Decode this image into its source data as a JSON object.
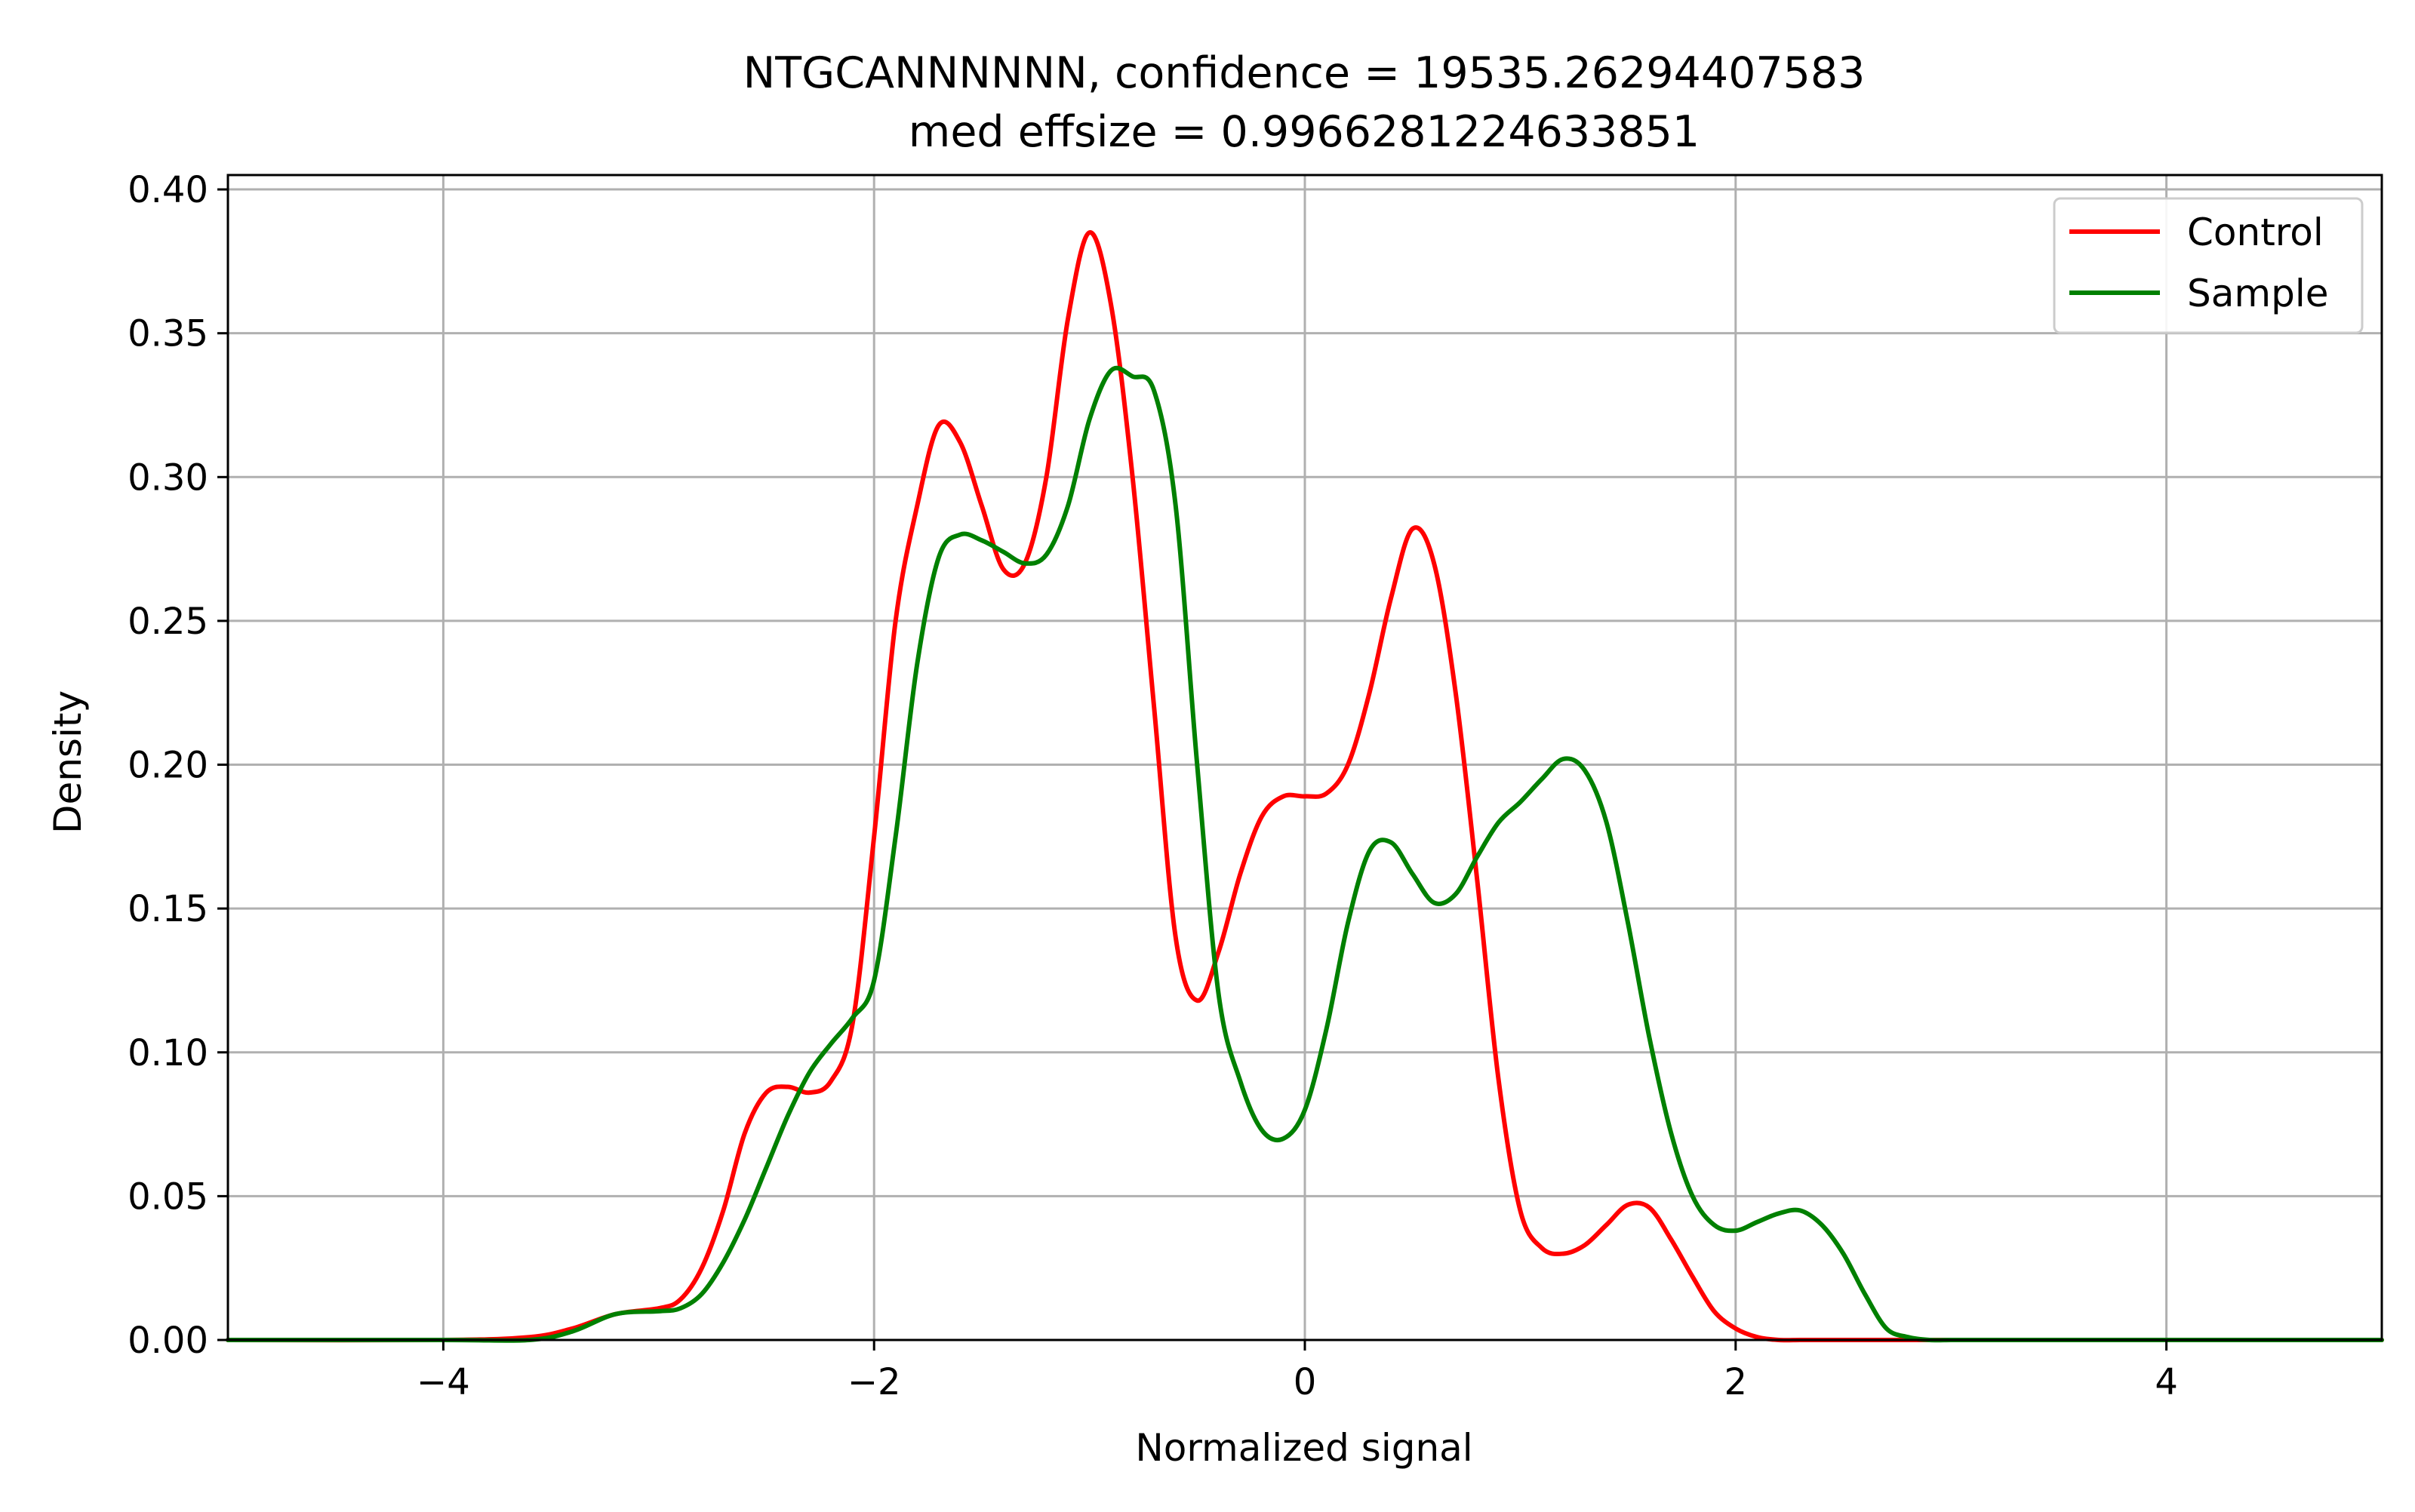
{
  "chart_data": {
    "type": "line",
    "title": "NTGCANNNNNN, confidence = 19535.26294407583",
    "subtitle": "med effsize = 0.9966281224633851",
    "xlabel": "Normalized signal",
    "ylabel": "Density",
    "xlim": [
      -5,
      5
    ],
    "ylim": [
      0,
      0.405
    ],
    "x_ticks": [
      -4,
      -2,
      0,
      2,
      4
    ],
    "x_tick_labels": [
      "−4",
      "−2",
      "0",
      "2",
      "4"
    ],
    "y_ticks": [
      0,
      0.05,
      0.1,
      0.15,
      0.2,
      0.25,
      0.3,
      0.35,
      0.4
    ],
    "y_tick_labels": [
      "0.00",
      "0.05",
      "0.10",
      "0.15",
      "0.20",
      "0.25",
      "0.30",
      "0.35",
      "0.40"
    ],
    "grid": true,
    "legend_position": "top-right",
    "series": [
      {
        "name": "Control",
        "color": "#ff0000",
        "x": [
          -5,
          -4,
          -3.6,
          -3.4,
          -3.2,
          -3.0,
          -2.9,
          -2.8,
          -2.7,
          -2.6,
          -2.5,
          -2.4,
          -2.3,
          -2.2,
          -2.1,
          -2.0,
          -1.9,
          -1.8,
          -1.7,
          -1.6,
          -1.5,
          -1.4,
          -1.3,
          -1.2,
          -1.1,
          -1.0,
          -0.9,
          -0.8,
          -0.7,
          -0.6,
          -0.5,
          -0.4,
          -0.3,
          -0.2,
          -0.1,
          0.0,
          0.1,
          0.2,
          0.3,
          0.4,
          0.5,
          0.6,
          0.7,
          0.8,
          0.9,
          1.0,
          1.1,
          1.2,
          1.3,
          1.4,
          1.5,
          1.6,
          1.7,
          1.8,
          1.9,
          2.0,
          2.1,
          2.2,
          2.3,
          2.4,
          2.5,
          2.6,
          2.7,
          2.8,
          2.9,
          3.0,
          3.1,
          3.2,
          3.4,
          3.6,
          4.0,
          5.0
        ],
        "y": [
          0,
          0,
          0.001,
          0.004,
          0.009,
          0.011,
          0.014,
          0.025,
          0.045,
          0.072,
          0.086,
          0.088,
          0.086,
          0.09,
          0.11,
          0.175,
          0.25,
          0.29,
          0.318,
          0.312,
          0.29,
          0.268,
          0.27,
          0.3,
          0.355,
          0.385,
          0.36,
          0.3,
          0.22,
          0.14,
          0.118,
          0.135,
          0.162,
          0.182,
          0.189,
          0.189,
          0.19,
          0.2,
          0.225,
          0.258,
          0.282,
          0.27,
          0.225,
          0.16,
          0.09,
          0.045,
          0.032,
          0.03,
          0.033,
          0.04,
          0.047,
          0.046,
          0.035,
          0.022,
          0.01,
          0.004,
          0.001,
          0,
          0,
          0,
          0,
          0,
          0,
          0,
          0,
          0,
          0,
          0,
          0,
          0,
          0,
          0
        ]
      },
      {
        "name": "Sample",
        "color": "#008000",
        "x": [
          -5,
          -4,
          -3.6,
          -3.4,
          -3.2,
          -3.0,
          -2.9,
          -2.8,
          -2.7,
          -2.6,
          -2.5,
          -2.4,
          -2.3,
          -2.2,
          -2.1,
          -2.0,
          -1.9,
          -1.8,
          -1.7,
          -1.6,
          -1.5,
          -1.4,
          -1.3,
          -1.2,
          -1.1,
          -1.0,
          -0.9,
          -0.8,
          -0.7,
          -0.6,
          -0.5,
          -0.4,
          -0.3,
          -0.2,
          -0.1,
          0.0,
          0.1,
          0.2,
          0.3,
          0.4,
          0.5,
          0.6,
          0.7,
          0.8,
          0.9,
          1.0,
          1.1,
          1.2,
          1.3,
          1.4,
          1.5,
          1.6,
          1.7,
          1.8,
          1.9,
          2.0,
          2.1,
          2.2,
          2.3,
          2.4,
          2.5,
          2.6,
          2.7,
          2.8,
          2.9,
          3.0,
          3.1,
          3.2,
          3.4,
          3.6,
          4.0,
          5.0
        ],
        "y": [
          0,
          0,
          0.0,
          0.003,
          0.009,
          0.01,
          0.011,
          0.016,
          0.027,
          0.042,
          0.06,
          0.078,
          0.093,
          0.103,
          0.112,
          0.125,
          0.175,
          0.235,
          0.272,
          0.28,
          0.278,
          0.274,
          0.27,
          0.273,
          0.29,
          0.32,
          0.337,
          0.335,
          0.33,
          0.29,
          0.2,
          0.12,
          0.09,
          0.073,
          0.07,
          0.08,
          0.108,
          0.145,
          0.17,
          0.173,
          0.162,
          0.152,
          0.155,
          0.168,
          0.18,
          0.187,
          0.195,
          0.202,
          0.198,
          0.18,
          0.145,
          0.105,
          0.072,
          0.05,
          0.04,
          0.038,
          0.041,
          0.044,
          0.045,
          0.04,
          0.03,
          0.016,
          0.004,
          0.001,
          0,
          0,
          0,
          0,
          0,
          0,
          0,
          0
        ]
      }
    ]
  }
}
